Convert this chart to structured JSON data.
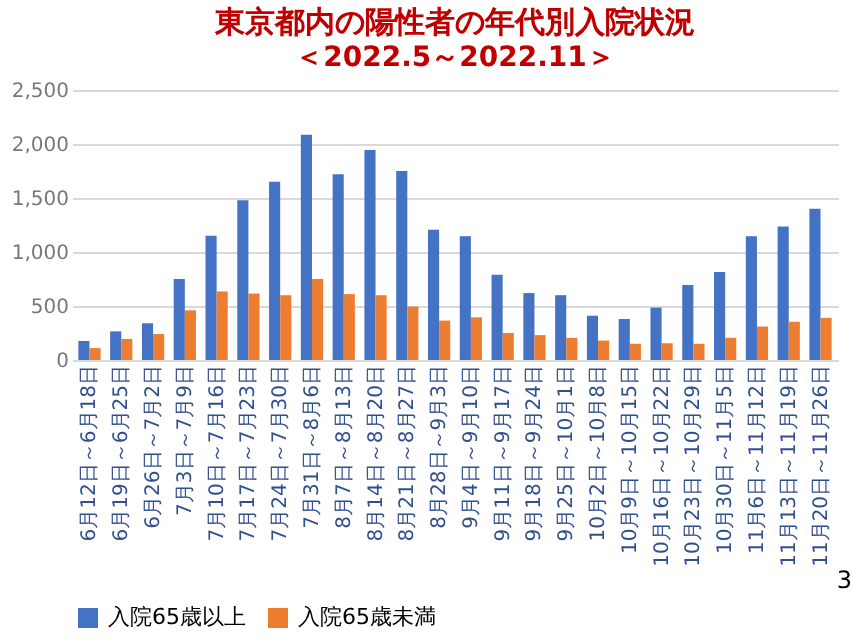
{
  "chart_data": {
    "type": "bar",
    "title": "東京都内の陽性者の年代別入院状況",
    "subtitle": "＜2022.5～2022.11＞",
    "categories": [
      "6月12日～6月18日",
      "6月19日～6月25日",
      "6月26日～7月2日",
      "7月3日～7月9日",
      "7月10日～7月16日",
      "7月17日～7月23日",
      "7月24日～7月30日",
      "7月31日～8月6日",
      "8月7日～8月13日",
      "8月14日～8月20日",
      "8月21日～8月27日",
      "8月28日～9月3日",
      "9月4日～9月10日",
      "9月11日～9月17日",
      "9月18日～9月24日",
      "9月25日～10月1日",
      "10月2日～10月8日",
      "10月9日～10月15日",
      "10月16日～10月22日",
      "10月23日～10月29日",
      "10月30日～11月5日",
      "11月6日～11月12日",
      "11月13日～11月19日",
      "11月20日～11月26日"
    ],
    "series": [
      {
        "name": "入院65歳以上",
        "color": "#4472c4",
        "values": [
          175,
          265,
          340,
          750,
          1150,
          1480,
          1650,
          2085,
          1720,
          1945,
          1750,
          1205,
          1145,
          790,
          620,
          600,
          410,
          380,
          485,
          695,
          815,
          1145,
          1235,
          1400
        ]
      },
      {
        "name": "入院65歳未満",
        "color": "#ed7d31",
        "values": [
          110,
          195,
          240,
          460,
          635,
          615,
          600,
          750,
          610,
          600,
          495,
          365,
          395,
          250,
          230,
          205,
          180,
          150,
          155,
          150,
          205,
          310,
          355,
          390
        ]
      }
    ],
    "ylim": [
      0,
      2500
    ],
    "yticks": [
      {
        "value": 0,
        "label": "0"
      },
      {
        "value": 500,
        "label": "500"
      },
      {
        "value": 1000,
        "label": "1,000"
      },
      {
        "value": 1500,
        "label": "1,500"
      },
      {
        "value": 2000,
        "label": "2,000"
      },
      {
        "value": 2500,
        "label": "2,500"
      }
    ],
    "grid": "y",
    "legend": "bottom",
    "annotations": [
      "3"
    ]
  }
}
